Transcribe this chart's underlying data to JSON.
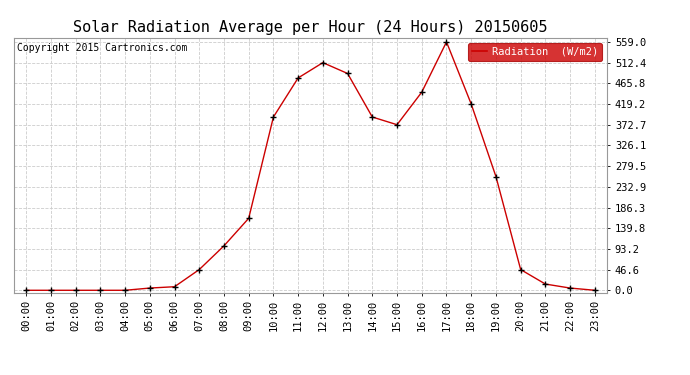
{
  "title": "Solar Radiation Average per Hour (24 Hours) 20150605",
  "copyright_text": "Copyright 2015 Cartronics.com",
  "legend_label": "Radiation  (W/m2)",
  "x_labels": [
    "00:00",
    "01:00",
    "02:00",
    "03:00",
    "04:00",
    "05:00",
    "06:00",
    "07:00",
    "08:00",
    "09:00",
    "10:00",
    "11:00",
    "12:00",
    "13:00",
    "14:00",
    "15:00",
    "16:00",
    "17:00",
    "18:00",
    "19:00",
    "20:00",
    "21:00",
    "22:00",
    "23:00"
  ],
  "y_values": [
    0.0,
    0.0,
    0.0,
    0.0,
    0.0,
    5.0,
    8.0,
    46.6,
    100.0,
    162.0,
    390.0,
    478.0,
    512.4,
    488.0,
    390.0,
    372.7,
    446.0,
    559.0,
    419.2,
    256.0,
    46.6,
    14.0,
    5.0,
    0.0
  ],
  "yticks": [
    0.0,
    46.6,
    93.2,
    139.8,
    186.3,
    232.9,
    279.5,
    326.1,
    372.7,
    419.2,
    465.8,
    512.4,
    559.0
  ],
  "ytick_labels": [
    "0.0",
    "46.6",
    "93.2",
    "139.8",
    "186.3",
    "232.9",
    "279.5",
    "326.1",
    "372.7",
    "419.2",
    "465.8",
    "512.4",
    "559.0"
  ],
  "line_color": "#cc0000",
  "marker_color": "#000000",
  "bg_color": "#ffffff",
  "grid_color": "#cccccc",
  "legend_bg": "#cc0000",
  "legend_text_color": "#ffffff",
  "title_fontsize": 11,
  "tick_fontsize": 7.5,
  "copyright_fontsize": 7,
  "ymax": 559.0,
  "ymin": 0.0,
  "figwidth": 6.9,
  "figheight": 3.75,
  "dpi": 100
}
